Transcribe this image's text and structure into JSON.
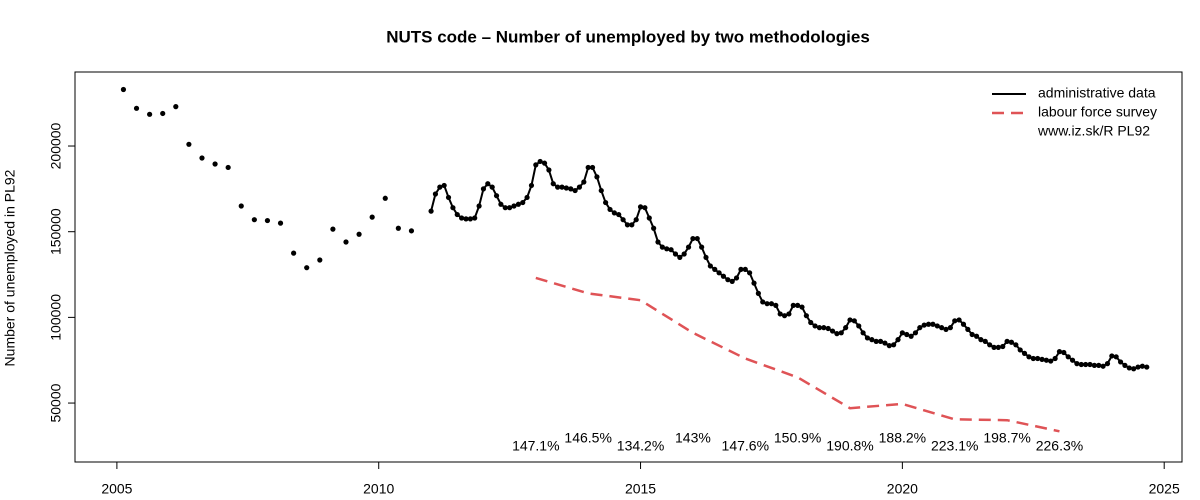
{
  "chart_data": {
    "type": "line",
    "title": "NUTS code – Number of unemployed  by two methodologies",
    "y_label": "Number of unemployed in PL92",
    "legend_note": "www.iz.sk/R PL92",
    "legend_position": "top-right",
    "xlim": [
      2004.2,
      2025.34
    ],
    "xticks": [
      2005,
      2010,
      2015,
      2020,
      2025
    ],
    "ylim": [
      15600,
      243200
    ],
    "yticks": [
      50000,
      100000,
      150000,
      200000
    ],
    "series": [
      {
        "color": "#000000",
        "line": "none",
        "marker": true,
        "x": [
          2005.125,
          2005.375,
          2005.625,
          2005.875,
          2006.125,
          2006.375,
          2006.625,
          2006.875,
          2007.125,
          2007.375,
          2007.625,
          2007.875,
          2008.125,
          2008.375,
          2008.625,
          2008.875,
          2009.125,
          2009.375,
          2009.625,
          2009.875,
          2010.125,
          2010.375,
          2010.625
        ],
        "values": [
          233000,
          222000,
          218500,
          219000,
          223000,
          201000,
          193000,
          189500,
          187500,
          165000,
          157000,
          156500,
          155000,
          137500,
          129000,
          133500,
          151500,
          144000,
          148500,
          158500,
          169500,
          152000,
          150500
        ]
      },
      {
        "name": "administrative data",
        "color": "#000000",
        "line": "solid",
        "marker": true,
        "x": [
          2011,
          2011.083,
          2011.167,
          2011.25,
          2011.333,
          2011.417,
          2011.5,
          2011.583,
          2011.667,
          2011.75,
          2011.833,
          2011.917,
          2012,
          2012.083,
          2012.167,
          2012.25,
          2012.333,
          2012.417,
          2012.5,
          2012.583,
          2012.667,
          2012.75,
          2012.833,
          2012.917,
          2013,
          2013.083,
          2013.167,
          2013.25,
          2013.333,
          2013.417,
          2013.5,
          2013.583,
          2013.667,
          2013.75,
          2013.833,
          2013.917,
          2014,
          2014.083,
          2014.167,
          2014.25,
          2014.333,
          2014.417,
          2014.5,
          2014.583,
          2014.667,
          2014.75,
          2014.833,
          2014.917,
          2015,
          2015.083,
          2015.167,
          2015.25,
          2015.333,
          2015.417,
          2015.5,
          2015.583,
          2015.667,
          2015.75,
          2015.833,
          2015.917,
          2016,
          2016.083,
          2016.167,
          2016.25,
          2016.333,
          2016.417,
          2016.5,
          2016.583,
          2016.667,
          2016.75,
          2016.833,
          2016.917,
          2017,
          2017.083,
          2017.167,
          2017.25,
          2017.333,
          2017.417,
          2017.5,
          2017.583,
          2017.667,
          2017.75,
          2017.833,
          2017.917,
          2018,
          2018.083,
          2018.167,
          2018.25,
          2018.333,
          2018.417,
          2018.5,
          2018.583,
          2018.667,
          2018.75,
          2018.833,
          2018.917,
          2019,
          2019.083,
          2019.167,
          2019.25,
          2019.333,
          2019.417,
          2019.5,
          2019.583,
          2019.667,
          2019.75,
          2019.833,
          2019.917,
          2020,
          2020.083,
          2020.167,
          2020.25,
          2020.333,
          2020.417,
          2020.5,
          2020.583,
          2020.667,
          2020.75,
          2020.833,
          2020.917,
          2021,
          2021.083,
          2021.167,
          2021.25,
          2021.333,
          2021.417,
          2021.5,
          2021.583,
          2021.667,
          2021.75,
          2021.833,
          2021.917,
          2022,
          2022.083,
          2022.167,
          2022.25,
          2022.333,
          2022.417,
          2022.5,
          2022.583,
          2022.667,
          2022.75,
          2022.833,
          2022.917,
          2023,
          2023.083,
          2023.167,
          2023.25,
          2023.333,
          2023.417,
          2023.5,
          2023.583,
          2023.667,
          2023.75,
          2023.833,
          2023.917,
          2024,
          2024.083,
          2024.167,
          2024.25,
          2024.333,
          2024.417,
          2024.5,
          2024.583,
          2024.667
        ],
        "values": [
          162000,
          172000,
          176000,
          177000,
          170000,
          164000,
          160000,
          158000,
          157500,
          157500,
          158000,
          165000,
          175000,
          178000,
          176000,
          171000,
          166000,
          164000,
          164000,
          165000,
          166000,
          167000,
          170000,
          177000,
          189000,
          191000,
          190000,
          186000,
          178000,
          176000,
          176000,
          175500,
          175000,
          174000,
          176000,
          179000,
          187500,
          187500,
          182000,
          174000,
          167000,
          163000,
          161000,
          160000,
          157000,
          154000,
          154000,
          157000,
          164500,
          164000,
          158000,
          152000,
          144000,
          141000,
          140000,
          139500,
          137000,
          135000,
          137000,
          141000,
          146000,
          146000,
          141000,
          135000,
          130000,
          128000,
          126000,
          124000,
          122000,
          121000,
          123000,
          128000,
          128000,
          126000,
          120000,
          114000,
          109000,
          108000,
          108000,
          107000,
          102000,
          101000,
          102000,
          107000,
          107000,
          106000,
          101000,
          97000,
          95000,
          94000,
          94000,
          93500,
          92000,
          90500,
          91000,
          94000,
          98500,
          98000,
          95000,
          91000,
          88000,
          87000,
          86000,
          86000,
          85000,
          83500,
          84000,
          87000,
          91000,
          90000,
          89000,
          91000,
          94000,
          95500,
          96000,
          96000,
          95000,
          94000,
          93000,
          94000,
          98000,
          98500,
          96000,
          93000,
          90000,
          89000,
          87000,
          86000,
          84000,
          82500,
          82500,
          83000,
          86000,
          85500,
          84000,
          81000,
          79000,
          77000,
          76000,
          76000,
          75500,
          75000,
          74500,
          76000,
          80000,
          79500,
          77000,
          75000,
          73000,
          72500,
          72500,
          72500,
          72000,
          72000,
          71500,
          73000,
          77500,
          77000,
          74000,
          72000,
          70500,
          70000,
          71000,
          71500,
          71000
        ]
      },
      {
        "name": "labour force survey",
        "color": "#df5356",
        "line": "dashed",
        "marker": false,
        "x": [
          2013,
          2014,
          2015,
          2016,
          2017,
          2018,
          2019,
          2020,
          2021,
          2022,
          2023
        ],
        "values": [
          123000,
          114000,
          110000,
          91000,
          76000,
          65000,
          47000,
          49500,
          40500,
          40000,
          33500
        ]
      }
    ],
    "ratios": {
      "x": [
        2013,
        2014,
        2015,
        2016,
        2017,
        2018,
        2019,
        2020,
        2021,
        2022,
        2023
      ],
      "values": [
        147.1,
        146.5,
        134.2,
        143,
        147.6,
        150.9,
        190.8,
        188.2,
        223.1,
        198.7,
        226.3
      ],
      "value_labels": [
        "147.1%",
        "146.5%",
        "134.2%",
        "143%",
        "147.6%",
        "150.9%",
        "190.8%",
        "188.2%",
        "223.1%",
        "198.7%",
        "226.3%"
      ]
    }
  }
}
